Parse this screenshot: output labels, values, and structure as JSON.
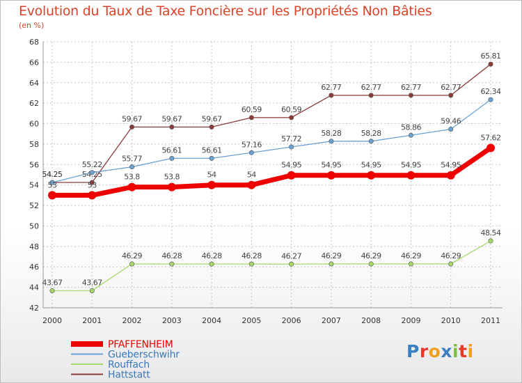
{
  "title": "Evolution du Taux de Taxe Foncière sur les Propriétés Non Bâties",
  "unit": "(en %)",
  "logo": "Proxiti",
  "chart_data": {
    "type": "line",
    "title": "Evolution du Taux de Taxe Foncière sur les Propriétés Non Bâties",
    "ylabel": "(en %)",
    "xlabel": "",
    "ylim": [
      42,
      68
    ],
    "grid": true,
    "legend_position": "bottom-left",
    "x": [
      "2000",
      "2001",
      "2002",
      "2003",
      "2004",
      "2005",
      "2006",
      "2007",
      "2008",
      "2009",
      "2010",
      "2011"
    ],
    "yticks": [
      42,
      44,
      46,
      48,
      50,
      52,
      54,
      56,
      58,
      60,
      62,
      64,
      66,
      68
    ],
    "series": [
      {
        "name": "PFAFFENHEIM",
        "color": "#ee0000",
        "values": [
          53,
          53,
          53.8,
          53.8,
          54,
          54,
          54.95,
          54.95,
          54.95,
          54.95,
          54.95,
          57.62
        ],
        "labels": [
          "53",
          "53",
          "53.8",
          "53.8",
          "54",
          "54",
          "54.95",
          "54.95",
          "54.95",
          "54.95",
          "54.95",
          "57.62"
        ]
      },
      {
        "name": "Gueberschwihr",
        "color": "#6aa2d4",
        "values": [
          54.25,
          55.22,
          55.77,
          56.61,
          56.61,
          57.16,
          57.72,
          58.28,
          58.28,
          58.86,
          59.46,
          62.34
        ],
        "labels": [
          "54.25",
          "55.22",
          "55.77",
          "56.61",
          "56.61",
          "57.16",
          "57.72",
          "58.28",
          "58.28",
          "58.86",
          "59.46",
          "62.34"
        ]
      },
      {
        "name": "Rouffach",
        "color": "#a6d96a",
        "values": [
          43.67,
          43.67,
          46.29,
          46.28,
          46.28,
          46.28,
          46.27,
          46.29,
          46.29,
          46.29,
          46.29,
          48.54
        ],
        "labels": [
          "43.67",
          "43.67",
          "46.29",
          "46.28",
          "46.28",
          "46.28",
          "46.27",
          "46.29",
          "46.29",
          "46.29",
          "46.29",
          "48.54"
        ]
      },
      {
        "name": "Hattstatt",
        "color": "#8b3a3a",
        "values": [
          54.25,
          54.25,
          59.67,
          59.67,
          59.67,
          60.59,
          60.59,
          62.77,
          62.77,
          62.77,
          62.77,
          65.81
        ],
        "labels": [
          "54.25",
          "54.25",
          "59.67",
          "59.67",
          "59.67",
          "60.59",
          "60.59",
          "62.77",
          "62.77",
          "62.77",
          "62.77",
          "65.81"
        ]
      }
    ]
  }
}
